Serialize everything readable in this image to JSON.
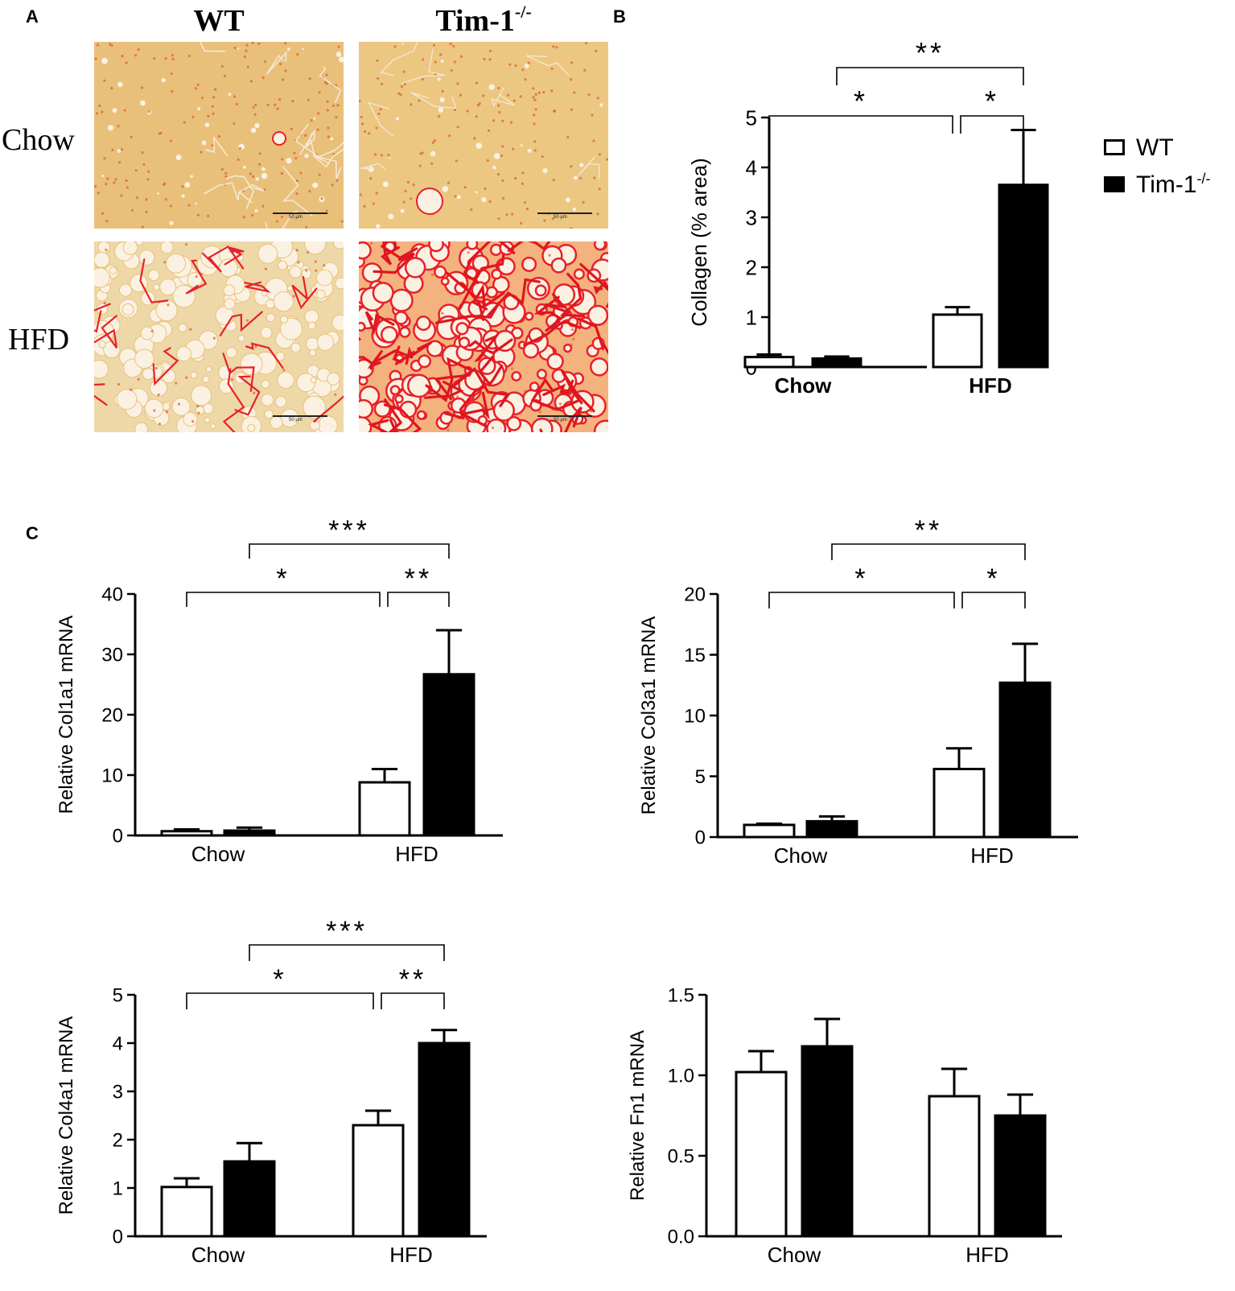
{
  "panels": {
    "a": "A",
    "b": "B",
    "c": "C"
  },
  "micrographs": {
    "columns": [
      {
        "label": "WT",
        "sup": ""
      },
      {
        "label": "Tim-1",
        "sup": "-/-"
      }
    ],
    "rows": [
      "Chow",
      "HFD"
    ],
    "scale_bar_label": "50 μm"
  },
  "legend": {
    "items": [
      {
        "label": "WT",
        "sup": "",
        "color": "#ffffff"
      },
      {
        "label": "Tim-1",
        "sup": "-/-",
        "color": "#000000"
      }
    ]
  },
  "colors": {
    "wt": "#ffffff",
    "tim1": "#000000",
    "stain_background": "#e9c678",
    "stain_collagen": "#e8202a"
  },
  "chart_data": [
    {
      "id": "collagen",
      "type": "bar",
      "categories": [
        "Chow",
        "HFD"
      ],
      "category_bold": true,
      "ylabel": "Collagen (% area)",
      "ylim": [
        0,
        5
      ],
      "yticks": [
        "0",
        "1",
        "2",
        "3",
        "4",
        "5"
      ],
      "series": [
        {
          "name": "WT",
          "values": [
            0.2,
            1.05
          ],
          "errors": [
            0.05,
            0.15
          ]
        },
        {
          "name": "Tim-1-/-",
          "values": [
            0.17,
            3.65
          ],
          "errors": [
            0.04,
            1.1
          ]
        }
      ],
      "significance": [
        {
          "from": "Chow|WT",
          "to": "HFD|WT",
          "label": "*"
        },
        {
          "from": "HFD|WT",
          "to": "HFD|Tim-1-/-",
          "label": "*"
        },
        {
          "from": "Chow|Tim-1-/-",
          "to": "HFD|Tim-1-/-",
          "label": "**"
        }
      ]
    },
    {
      "id": "col1a1",
      "type": "bar",
      "categories": [
        "Chow",
        "HFD"
      ],
      "category_bold": false,
      "ylabel": "Relative Col1a1 mRNA",
      "ylim": [
        0,
        40
      ],
      "yticks": [
        "0",
        "10",
        "20",
        "30",
        "40"
      ],
      "series": [
        {
          "name": "WT",
          "values": [
            0.7,
            8.8
          ],
          "errors": [
            0.3,
            2.2
          ]
        },
        {
          "name": "Tim-1-/-",
          "values": [
            0.8,
            26.7
          ],
          "errors": [
            0.5,
            7.3
          ]
        }
      ],
      "significance": [
        {
          "from": "Chow|WT",
          "to": "HFD|WT",
          "label": "*"
        },
        {
          "from": "HFD|WT",
          "to": "HFD|Tim-1-/-",
          "label": "**"
        },
        {
          "from": "Chow|Tim-1-/-",
          "to": "HFD|Tim-1-/-",
          "label": "***"
        }
      ]
    },
    {
      "id": "col3a1",
      "type": "bar",
      "categories": [
        "Chow",
        "HFD"
      ],
      "category_bold": false,
      "ylabel": "Relative Col3a1 mRNA",
      "ylim": [
        0,
        20
      ],
      "yticks": [
        "0",
        "5",
        "10",
        "15",
        "20"
      ],
      "series": [
        {
          "name": "WT",
          "values": [
            1.0,
            5.6
          ],
          "errors": [
            0.1,
            1.7
          ]
        },
        {
          "name": "Tim-1-/-",
          "values": [
            1.3,
            12.7
          ],
          "errors": [
            0.4,
            3.2
          ]
        }
      ],
      "significance": [
        {
          "from": "Chow|WT",
          "to": "HFD|WT",
          "label": "*"
        },
        {
          "from": "HFD|WT",
          "to": "HFD|Tim-1-/-",
          "label": "*"
        },
        {
          "from": "Chow|Tim-1-/-",
          "to": "HFD|Tim-1-/-",
          "label": "**"
        }
      ]
    },
    {
      "id": "col4a1",
      "type": "bar",
      "categories": [
        "Chow",
        "HFD"
      ],
      "category_bold": false,
      "ylabel": "Relative Col4a1 mRNA",
      "ylim": [
        0,
        5
      ],
      "yticks": [
        "0",
        "1",
        "2",
        "3",
        "4",
        "5"
      ],
      "series": [
        {
          "name": "WT",
          "values": [
            1.02,
            2.3
          ],
          "errors": [
            0.18,
            0.3
          ]
        },
        {
          "name": "Tim-1-/-",
          "values": [
            1.55,
            4.0
          ],
          "errors": [
            0.38,
            0.27
          ]
        }
      ],
      "significance": [
        {
          "from": "Chow|WT",
          "to": "HFD|WT",
          "label": "*"
        },
        {
          "from": "HFD|WT",
          "to": "HFD|Tim-1-/-",
          "label": "**"
        },
        {
          "from": "Chow|Tim-1-/-",
          "to": "HFD|Tim-1-/-",
          "label": "***"
        }
      ]
    },
    {
      "id": "fn1",
      "type": "bar",
      "categories": [
        "Chow",
        "HFD"
      ],
      "category_bold": false,
      "ylabel": "Relative Fn1 mRNA",
      "ylim": [
        0,
        1.5
      ],
      "yticks": [
        "0.0",
        "0.5",
        "1.0",
        "1.5"
      ],
      "series": [
        {
          "name": "WT",
          "values": [
            1.02,
            0.87
          ],
          "errors": [
            0.13,
            0.17
          ]
        },
        {
          "name": "Tim-1-/-",
          "values": [
            1.18,
            0.75
          ],
          "errors": [
            0.17,
            0.13
          ]
        }
      ],
      "significance": []
    }
  ]
}
